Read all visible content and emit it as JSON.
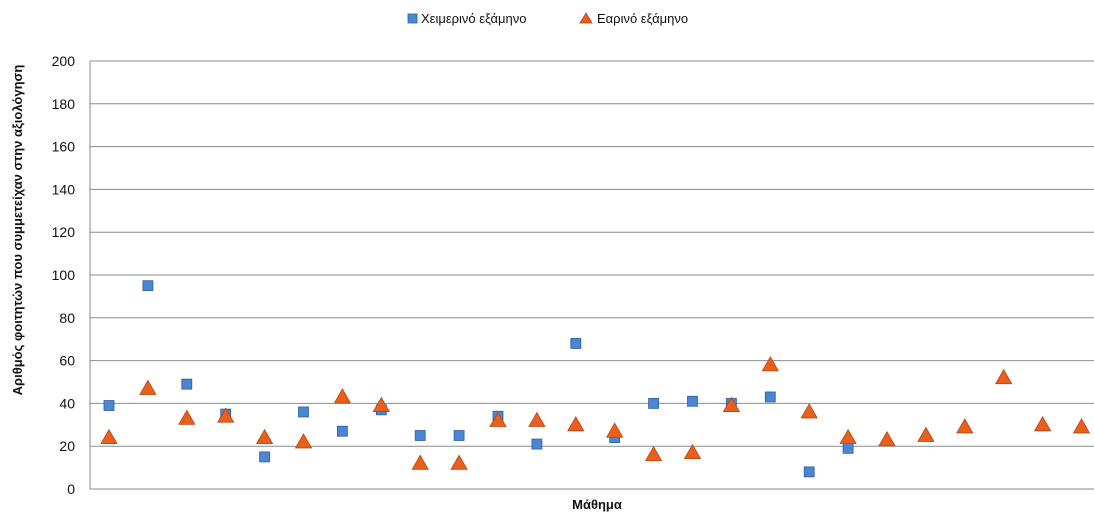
{
  "chart_data": {
    "type": "scatter",
    "title": "",
    "xlabel": "Μάθημα",
    "ylabel": "Αριθμός φοιτητών που συμμετείχαν στην αξιολόγηση",
    "ylim": [
      0,
      200
    ],
    "yticks": [
      "0",
      "20",
      "40",
      "60",
      "80",
      "100",
      "120",
      "140",
      "160",
      "180",
      "200"
    ],
    "grid": "horizontal",
    "legend": "top-center",
    "x": [
      1,
      2,
      3,
      4,
      5,
      6,
      7,
      8,
      9,
      10,
      11,
      12,
      13,
      14,
      15,
      16,
      17,
      18,
      19,
      20,
      21,
      22,
      23,
      24,
      25,
      26
    ],
    "series": [
      {
        "name": "Χειμερινό εξάμηνο",
        "marker": "square",
        "color": "#4a86d4",
        "values": [
          39,
          95,
          49,
          35,
          15,
          36,
          27,
          37,
          25,
          25,
          34,
          21,
          68,
          24,
          40,
          41,
          40,
          43,
          8,
          19,
          null,
          null,
          null,
          null,
          null,
          null
        ]
      },
      {
        "name": "Εαρινό εξάμηνο",
        "marker": "triangle",
        "color": "#e8601c",
        "values": [
          24,
          47,
          33,
          34,
          24,
          22,
          43,
          39,
          12,
          12,
          32,
          32,
          30,
          27,
          16,
          17,
          39,
          58,
          36,
          24,
          23,
          25,
          29,
          52,
          30,
          29
        ]
      }
    ]
  }
}
